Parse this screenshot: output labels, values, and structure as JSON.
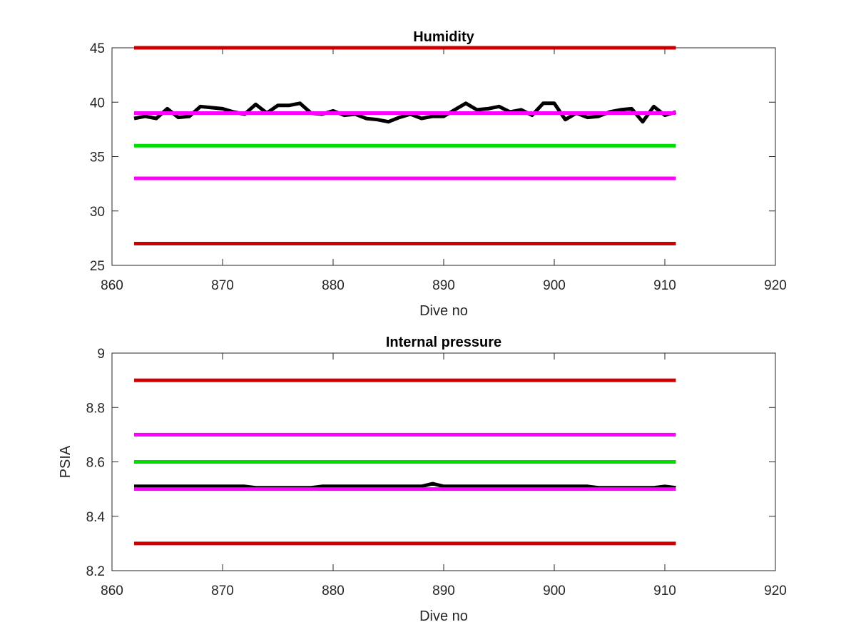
{
  "chart_data": [
    {
      "type": "line",
      "title": "Humidity",
      "xlabel": "Dive no",
      "ylabel": "",
      "xlim": [
        860,
        920
      ],
      "ylim": [
        25,
        45
      ],
      "xticks": [
        860,
        870,
        880,
        890,
        900,
        910,
        920
      ],
      "yticks": [
        25,
        30,
        35,
        40,
        45
      ],
      "xtick_labels": [
        "860",
        "870",
        "880",
        "890",
        "900",
        "910",
        "920"
      ],
      "ytick_labels": [
        "25",
        "30",
        "35",
        "40",
        "45"
      ],
      "grid": false,
      "series": [
        {
          "color": "#cc0000",
          "x": [
            862,
            911
          ],
          "y": [
            45,
            45
          ]
        },
        {
          "color": "#cc0000",
          "x": [
            862,
            911
          ],
          "y": [
            27,
            27
          ]
        },
        {
          "color": "#ff00ff",
          "x": [
            862,
            911
          ],
          "y": [
            33,
            33
          ]
        },
        {
          "color": "#00dd00",
          "x": [
            862,
            911
          ],
          "y": [
            36,
            36
          ]
        },
        {
          "color": "#000000",
          "x": [
            862,
            863,
            864,
            865,
            866,
            867,
            868,
            869,
            870,
            871,
            872,
            873,
            874,
            875,
            876,
            877,
            878,
            879,
            880,
            881,
            882,
            883,
            884,
            885,
            886,
            887,
            888,
            889,
            890,
            891,
            892,
            893,
            894,
            895,
            896,
            897,
            898,
            899,
            900,
            901,
            902,
            903,
            904,
            905,
            906,
            907,
            908,
            909,
            910,
            911
          ],
          "y": [
            38.5,
            38.7,
            38.5,
            39.4,
            38.6,
            38.7,
            39.6,
            39.5,
            39.4,
            39.1,
            38.9,
            39.8,
            39.0,
            39.7,
            39.7,
            39.9,
            39.0,
            38.9,
            39.2,
            38.8,
            38.9,
            38.5,
            38.4,
            38.2,
            38.6,
            38.9,
            38.5,
            38.7,
            38.7,
            39.3,
            39.9,
            39.3,
            39.4,
            39.6,
            39.1,
            39.3,
            38.8,
            39.9,
            39.9,
            38.4,
            39.0,
            38.6,
            38.7,
            39.1,
            39.3,
            39.4,
            38.2,
            39.6,
            38.8,
            39.1
          ]
        },
        {
          "color": "#ff00ff",
          "x": [
            862,
            911
          ],
          "y": [
            39,
            39
          ]
        }
      ]
    },
    {
      "type": "line",
      "title": "Internal pressure",
      "xlabel": "Dive no",
      "ylabel": "PSIA",
      "xlim": [
        860,
        920
      ],
      "ylim": [
        8.2,
        9.0
      ],
      "xticks": [
        860,
        870,
        880,
        890,
        900,
        910,
        920
      ],
      "yticks": [
        8.2,
        8.4,
        8.6,
        8.8,
        9.0
      ],
      "xtick_labels": [
        "860",
        "870",
        "880",
        "890",
        "900",
        "910",
        "920"
      ],
      "ytick_labels": [
        "8.2",
        "8.4",
        "8.6",
        "8.8",
        "9"
      ],
      "grid": false,
      "series": [
        {
          "color": "#cc0000",
          "x": [
            862,
            911
          ],
          "y": [
            8.9,
            8.9
          ]
        },
        {
          "color": "#cc0000",
          "x": [
            862,
            911
          ],
          "y": [
            8.3,
            8.3
          ]
        },
        {
          "color": "#ff00ff",
          "x": [
            862,
            911
          ],
          "y": [
            8.7,
            8.7
          ]
        },
        {
          "color": "#00dd00",
          "x": [
            862,
            911
          ],
          "y": [
            8.6,
            8.6
          ]
        },
        {
          "color": "#000000",
          "x": [
            862,
            863,
            864,
            865,
            866,
            867,
            868,
            869,
            870,
            871,
            872,
            873,
            874,
            875,
            876,
            877,
            878,
            879,
            880,
            881,
            882,
            883,
            884,
            885,
            886,
            887,
            888,
            889,
            890,
            891,
            892,
            893,
            894,
            895,
            896,
            897,
            898,
            899,
            900,
            901,
            902,
            903,
            904,
            905,
            906,
            907,
            908,
            909,
            910,
            911
          ],
          "y": [
            8.51,
            8.51,
            8.51,
            8.51,
            8.51,
            8.51,
            8.51,
            8.51,
            8.51,
            8.51,
            8.51,
            8.505,
            8.505,
            8.505,
            8.505,
            8.505,
            8.505,
            8.51,
            8.51,
            8.51,
            8.51,
            8.51,
            8.51,
            8.51,
            8.51,
            8.51,
            8.51,
            8.52,
            8.51,
            8.51,
            8.51,
            8.51,
            8.51,
            8.51,
            8.51,
            8.51,
            8.51,
            8.51,
            8.51,
            8.51,
            8.51,
            8.51,
            8.505,
            8.505,
            8.505,
            8.505,
            8.505,
            8.505,
            8.51,
            8.505
          ]
        },
        {
          "color": "#ff00ff",
          "x": [
            862,
            911
          ],
          "y": [
            8.5,
            8.5
          ]
        }
      ]
    }
  ]
}
